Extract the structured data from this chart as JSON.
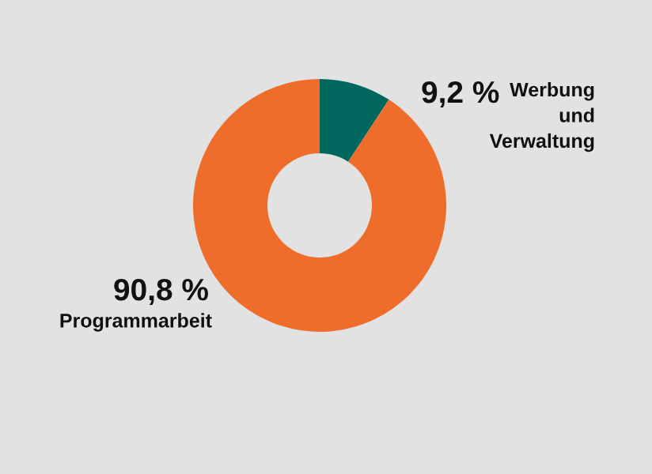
{
  "chart_data": {
    "type": "donut",
    "categories": [
      "Werbung\nund\nVerwaltung",
      "Programmarbeit"
    ],
    "values": [
      9.2,
      90.8
    ],
    "value_labels": [
      "9,2 %",
      "90,8 %"
    ],
    "colors": [
      "#00675f",
      "#ef6d2b"
    ],
    "legend": false
  }
}
